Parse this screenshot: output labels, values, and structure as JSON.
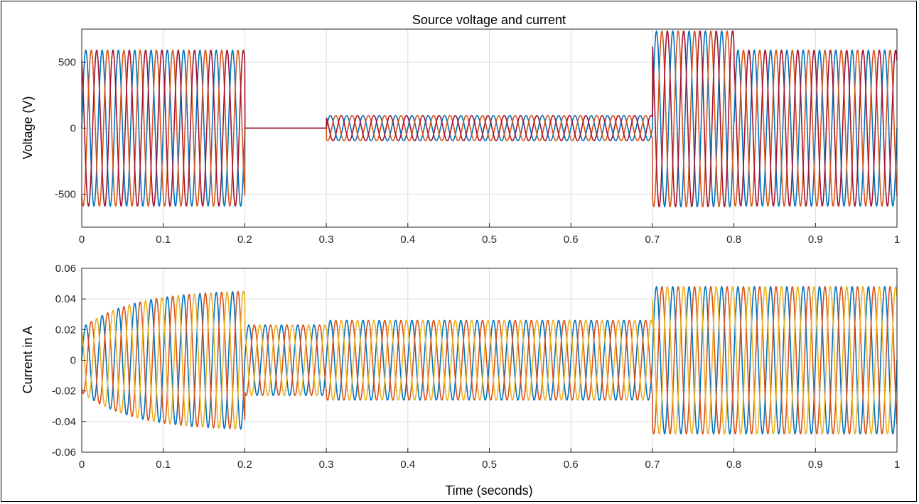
{
  "chart_data": [
    {
      "type": "line",
      "title": "Source voltage and current",
      "xlabel": "",
      "ylabel": "Voltage (V)",
      "xlim": [
        0,
        1
      ],
      "ylim": [
        -750,
        750
      ],
      "xticks": [
        "0",
        "0.1",
        "0.2",
        "0.3",
        "0.4",
        "0.5",
        "0.6",
        "0.7",
        "0.8",
        "0.9",
        "1"
      ],
      "yticks": [
        "500",
        "0",
        "-500"
      ],
      "ytick_values": [
        500,
        0,
        -500
      ],
      "grid": true,
      "waveform": {
        "kind": "three-phase sine",
        "frequency_hz": 50,
        "segments": [
          {
            "t": [
              0,
              0.2
            ],
            "amplitude": 590
          },
          {
            "t": [
              0.2,
              0.3
            ],
            "amplitude": 0
          },
          {
            "t": [
              0.3,
              0.7
            ],
            "amplitude": 95
          },
          {
            "t": [
              0.7,
              0.8
            ],
            "amplitude": 665,
            "offset": 70
          },
          {
            "t": [
              0.8,
              1.0
            ],
            "amplitude": 590
          }
        ]
      },
      "series_colors": [
        "#0072BD",
        "#D95319",
        "#A2142F"
      ]
    },
    {
      "type": "line",
      "title": "",
      "xlabel": "Time (seconds)",
      "ylabel": "Current in A",
      "xlim": [
        0,
        1
      ],
      "ylim": [
        -0.06,
        0.06
      ],
      "xticks": [
        "0",
        "0.1",
        "0.2",
        "0.3",
        "0.4",
        "0.5",
        "0.6",
        "0.7",
        "0.8",
        "0.9",
        "1"
      ],
      "yticks": [
        "0.06",
        "0.04",
        "0.02",
        "0",
        "-0.02",
        "-0.04",
        "-0.06"
      ],
      "ytick_values": [
        0.06,
        0.04,
        0.02,
        0,
        -0.02,
        -0.04,
        -0.06
      ],
      "grid": true,
      "waveform": {
        "kind": "three-phase sine",
        "frequency_hz": 50,
        "segments": [
          {
            "t": [
              0,
              0.2
            ],
            "amplitude_start": 0.021,
            "amplitude_end": 0.045
          },
          {
            "t": [
              0.2,
              0.3
            ],
            "amplitude": 0.023
          },
          {
            "t": [
              0.3,
              0.7
            ],
            "amplitude": 0.026
          },
          {
            "t": [
              0.7,
              1.0
            ],
            "amplitude": 0.048
          }
        ]
      },
      "series_colors": [
        "#0072BD",
        "#D95319",
        "#EDB120"
      ]
    }
  ]
}
